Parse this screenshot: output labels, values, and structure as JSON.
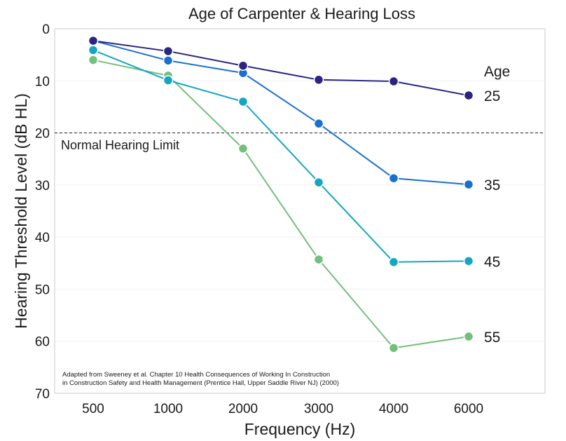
{
  "chart_data": {
    "type": "line",
    "title": "Age of Carpenter & Hearing Loss",
    "xlabel": "Frequency (Hz)",
    "ylabel": "Hearing Threshold Level (dB HL)",
    "categories": [
      "500",
      "1000",
      "2000",
      "3000",
      "4000",
      "6000"
    ],
    "ylim": [
      0,
      70
    ],
    "y_inverted": true,
    "yticks": [
      "0",
      "10",
      "20",
      "30",
      "40",
      "50",
      "60",
      "70"
    ],
    "grid": false,
    "legend_title": "Age",
    "series": [
      {
        "name": "25",
        "color": "#2b2580",
        "values": [
          2.3,
          4.3,
          7.1,
          9.8,
          10.1,
          12.8
        ]
      },
      {
        "name": "35",
        "color": "#1a70d0",
        "values": [
          2.3,
          6.1,
          8.5,
          18.2,
          28.7,
          29.9
        ]
      },
      {
        "name": "45",
        "color": "#14a6c4",
        "values": [
          4.1,
          9.9,
          14.0,
          29.5,
          44.8,
          44.6
        ]
      },
      {
        "name": "55",
        "color": "#74bf7c",
        "values": [
          6.0,
          9.0,
          23.0,
          44.3,
          61.3,
          59.1
        ]
      }
    ],
    "reference_line": {
      "value": 20,
      "label": "Normal Hearing Limit"
    },
    "source_lines": [
      "Adapted from Sweeney et al. Chapter 10 Health Consequences of Working In Construction",
      "in Construction Safety and Health Management (Prentice Hall, Upper Saddle River NJ) (2000)"
    ]
  }
}
